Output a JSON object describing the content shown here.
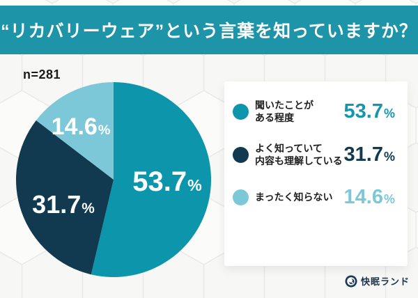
{
  "header": {
    "title": "“リカバリーウェア”という言葉を知っていますか？",
    "bg_color": "#1d94a8",
    "text_color": "#ffffff"
  },
  "chart_data": {
    "type": "pie",
    "title": "“リカバリーウェア”という言葉を知っていますか？",
    "sample_size_label": "n=281",
    "unit": "%",
    "start_angle_deg": 0,
    "direction": "clockwise",
    "legend_position": "right",
    "slices": [
      {
        "label": "聞いたことがある程度",
        "value": 53.7,
        "display": "53.7",
        "color": "#0d95ac"
      },
      {
        "label": "よく知っていて内容も理解している",
        "value": 31.7,
        "display": "31.7",
        "color": "#11394f"
      },
      {
        "label": "まったく知らない",
        "value": 14.6,
        "display": "14.6",
        "color": "#7dc8d8"
      }
    ]
  },
  "legend": {
    "rows": [
      {
        "line1": "聞いたことが",
        "line2": "ある程度",
        "value": "53.7",
        "unit": "%",
        "dot_color": "#0d95ac",
        "value_color": "#1596ac"
      },
      {
        "line1": "よく知っていて",
        "line2": "内容も理解している",
        "value": "31.7",
        "unit": "%",
        "dot_color": "#11394f",
        "value_color": "#113a51"
      },
      {
        "line1": "まったく知らない",
        "line2": "",
        "value": "14.6",
        "unit": "%",
        "dot_color": "#7dc8d8",
        "value_color": "#7dc8d8"
      }
    ]
  },
  "footer": {
    "brand_name": "快眠ランド",
    "brand_color": "#1c3349"
  },
  "background": {
    "base_color": "#f7f7f6",
    "hex_line_color": "#e9e9e9",
    "hex_fill_color": "#fbfbfa"
  }
}
